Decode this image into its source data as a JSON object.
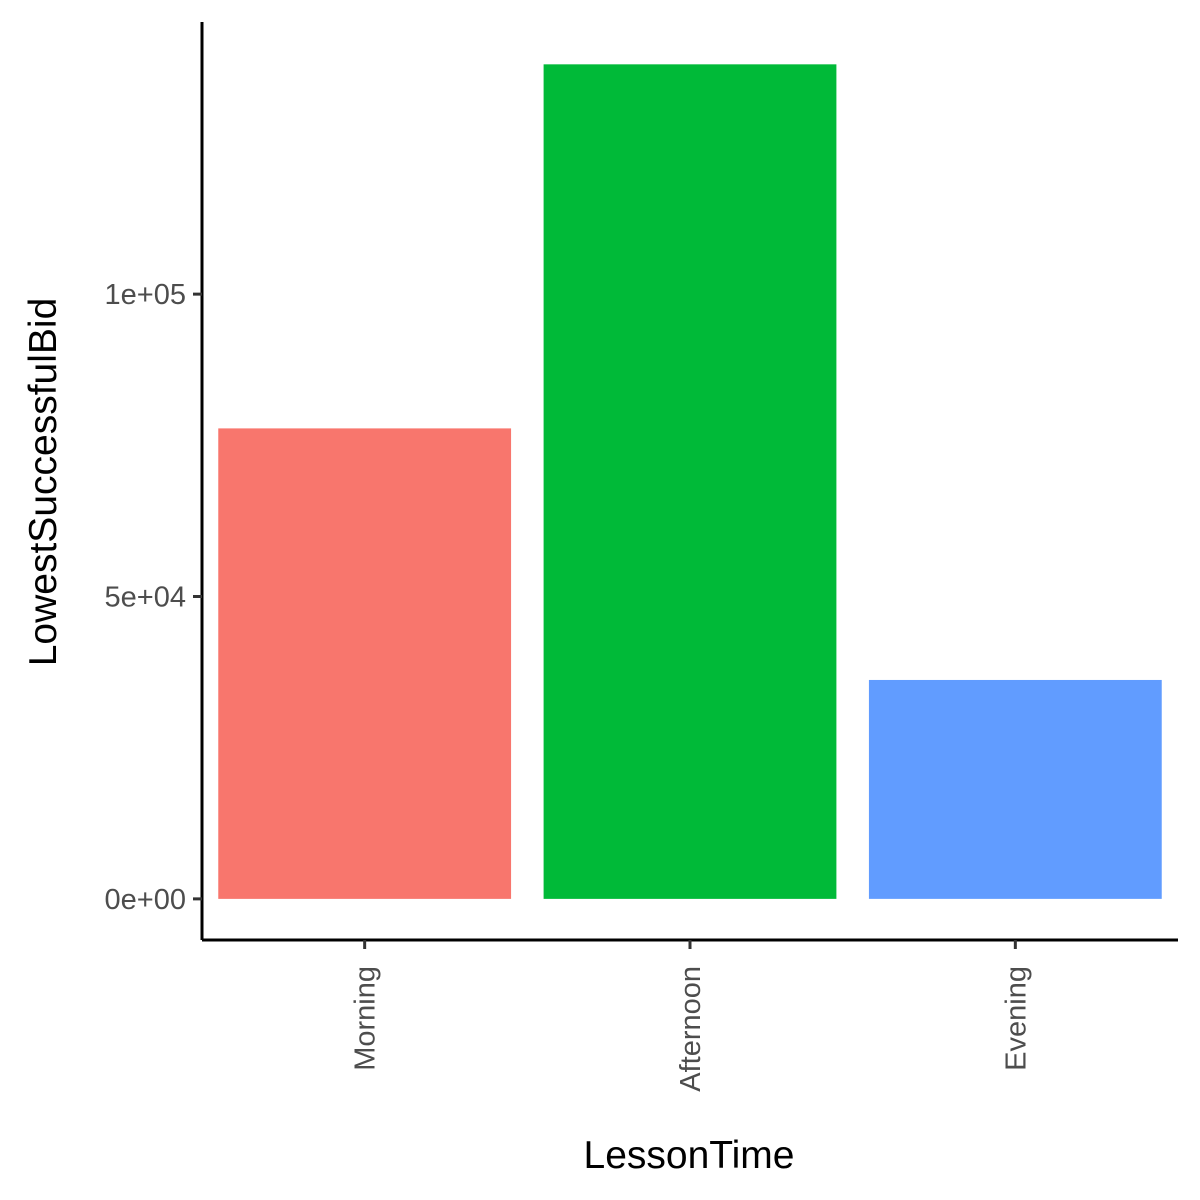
{
  "chart_data": {
    "type": "bar",
    "categories": [
      "Morning",
      "Afternoon",
      "Evening"
    ],
    "values": [
      77800,
      138000,
      36200
    ],
    "colors": [
      "#F8766D",
      "#00BA38",
      "#619CFF"
    ],
    "xlabel": "LessonTime",
    "ylabel": "LowestSuccessfulBid",
    "ylim": [
      -6800,
      145000
    ],
    "yticks": [
      0,
      50000,
      100000
    ],
    "ytick_labels": [
      "0e+00",
      "5e+04",
      "1e+05"
    ],
    "x_tick_label_rotation": "vertical",
    "grid": false,
    "legend": "none"
  }
}
